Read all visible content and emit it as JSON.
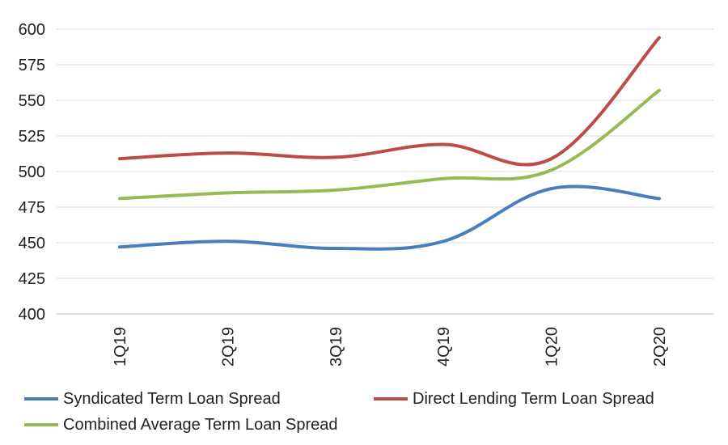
{
  "chart_data": {
    "type": "line",
    "title": "",
    "xlabel": "",
    "ylabel": "",
    "categories": [
      "1Q19",
      "2Q19",
      "3Q19",
      "4Q19",
      "1Q20",
      "2Q20"
    ],
    "ylim": [
      400,
      600
    ],
    "yticks": [
      400,
      425,
      450,
      475,
      500,
      525,
      550,
      575,
      600
    ],
    "grid": true,
    "smooth": true,
    "legend_position": "bottom",
    "series": [
      {
        "name": "Syndicated Term Loan Spread",
        "color": "#4A7EBB",
        "values": [
          447,
          451,
          446,
          451,
          488,
          481
        ]
      },
      {
        "name": "Direct Lending Term Loan Spread",
        "color": "#BE4B48",
        "values": [
          509,
          513,
          510,
          519,
          509,
          594
        ]
      },
      {
        "name": "Combined Average Term Loan Spread",
        "color": "#98B954",
        "values": [
          481,
          485,
          487,
          495,
          501,
          557
        ]
      }
    ]
  }
}
